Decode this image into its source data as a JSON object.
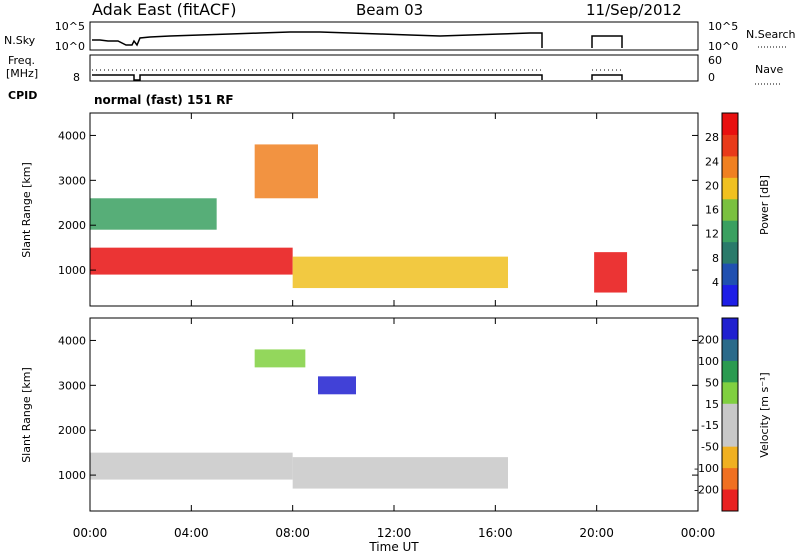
{
  "header": {
    "station": "Adak East (fitACF)",
    "beam": "Beam 03",
    "date": "11/Sep/2012"
  },
  "nsky_panel": {
    "left_label": "N.Sky",
    "right_label": "N.Search",
    "left_ticks": [
      "10^5",
      "10^0"
    ],
    "right_ticks": [
      "10^5",
      "10^0"
    ]
  },
  "freq_panel": {
    "left_label_1": "Freq.",
    "left_label_2": "[MHz]",
    "right_label": "Nave",
    "left_ticks": [
      "8"
    ],
    "right_ticks": [
      "60",
      "0"
    ]
  },
  "cpid": {
    "label": "CPID",
    "mode": "normal (fast) 151 RF"
  },
  "x_axis": {
    "label": "Time UT",
    "ticks": [
      "00:00",
      "04:00",
      "08:00",
      "12:00",
      "16:00",
      "20:00",
      "00:00"
    ]
  },
  "colors": {
    "power_scale": [
      "#1e1ee6",
      "#2050b0",
      "#2a7a6a",
      "#3aa060",
      "#7ac040",
      "#f0c020",
      "#f08020",
      "#e83a1a",
      "#e81010"
    ],
    "velocity_scale": [
      "#2020d0",
      "#2a6a8a",
      "#2a9a50",
      "#80d040",
      "#c8c8c8",
      "#c8c8c8",
      "#f0b020",
      "#f07020",
      "#e82020"
    ]
  },
  "chart_data": [
    {
      "type": "heatmap",
      "title": "",
      "xlabel": "",
      "ylabel": "Slant Range [km]",
      "xlim": [
        0,
        24
      ],
      "ylim": [
        200,
        4500
      ],
      "yticks": [
        "1000",
        "2000",
        "3000",
        "4000"
      ],
      "colorbar": {
        "label": "Power [dB]",
        "ticks": [
          "4",
          "8",
          "12",
          "16",
          "20",
          "24",
          "28"
        ],
        "range": [
          0,
          30
        ]
      },
      "data_gaps_hours": [
        [
          1.3,
          1.6
        ],
        [
          17.9,
          19.9
        ],
        [
          21.2,
          24
        ]
      ],
      "echo_regions": [
        {
          "t_start": 0.0,
          "t_end": 8.0,
          "range_low": 900,
          "range_high": 1500,
          "power_db": 28
        },
        {
          "t_start": 8.0,
          "t_end": 16.5,
          "range_low": 600,
          "range_high": 1300,
          "power_db": 18
        },
        {
          "t_start": 0.0,
          "t_end": 5.0,
          "range_low": 1900,
          "range_high": 2600,
          "power_db": 10
        },
        {
          "t_start": 6.5,
          "t_end": 9.0,
          "range_low": 2600,
          "range_high": 3800,
          "power_db": 20
        },
        {
          "t_start": 19.9,
          "t_end": 21.2,
          "range_low": 500,
          "range_high": 1400,
          "power_db": 28
        }
      ]
    },
    {
      "type": "heatmap",
      "title": "",
      "xlabel": "Time UT",
      "ylabel": "Slant Range [km]",
      "xlim": [
        0,
        24
      ],
      "ylim": [
        200,
        4500
      ],
      "yticks": [
        "1000",
        "2000",
        "3000",
        "4000"
      ],
      "colorbar": {
        "label": "Velocity [m s⁻¹]",
        "ticks": [
          "200",
          "100",
          "50",
          "15",
          "-15",
          "-50",
          "-100",
          "-200"
        ],
        "range": [
          -250,
          250
        ]
      },
      "data_gaps_hours": [
        [
          1.3,
          1.6
        ],
        [
          17.9,
          19.9
        ],
        [
          21.2,
          24
        ]
      ],
      "echo_regions": [
        {
          "t_start": 0.0,
          "t_end": 8.0,
          "range_low": 900,
          "range_high": 1500,
          "velocity": 0
        },
        {
          "t_start": 8.0,
          "t_end": 16.5,
          "range_low": 700,
          "range_high": 1400,
          "velocity": 0
        },
        {
          "t_start": 9.0,
          "t_end": 10.5,
          "range_low": 2800,
          "range_high": 3200,
          "velocity": 200
        },
        {
          "t_start": 6.5,
          "t_end": 8.5,
          "range_low": 3400,
          "range_high": 3800,
          "velocity": 60
        }
      ]
    }
  ]
}
